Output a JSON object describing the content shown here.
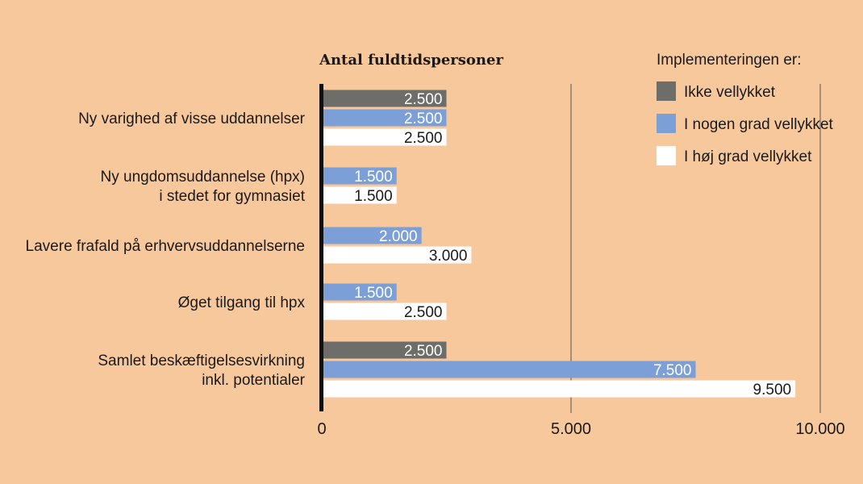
{
  "chart_data": {
    "type": "bar",
    "orientation": "horizontal",
    "title": "Antal fuldtidspersoner",
    "legend_title": "Implementeringen er:",
    "categories": [
      [
        "Ny varighed af visse uddannelser"
      ],
      [
        "Ny ungdomsuddannelse (hpx)",
        "i stedet for gymnasiet"
      ],
      [
        "Lavere frafald på erhvervsuddannelserne"
      ],
      [
        "Øget tilgang til hpx"
      ],
      [
        "Samlet beskæftigelsesvirkning",
        "inkl. potentialer"
      ]
    ],
    "series": [
      {
        "name": "Ikke vellykket",
        "color": "#6d6d69",
        "text_color": "#ffffff",
        "values": [
          2500,
          null,
          null,
          null,
          2500
        ],
        "labels": [
          "2.500",
          null,
          null,
          null,
          "2.500"
        ]
      },
      {
        "name": "I nogen grad vellykket",
        "color": "#7b9fd6",
        "text_color": "#ffffff",
        "values": [
          2500,
          1500,
          2000,
          1500,
          7500
        ],
        "labels": [
          "2.500",
          "1.500",
          "2.000",
          "1.500",
          "7.500"
        ]
      },
      {
        "name": "I høj grad vellykket",
        "color": "#ffffff",
        "text_color": "#1a1a1a",
        "values": [
          2500,
          1500,
          3000,
          2500,
          9500
        ],
        "labels": [
          "2.500",
          "1.500",
          "3.000",
          "2.500",
          "9.500"
        ]
      }
    ],
    "xlim": [
      0,
      10000
    ],
    "xticks": [
      0,
      5000,
      10000
    ],
    "xtick_labels": [
      "0",
      "5.000",
      "10.000"
    ],
    "grid": "vertical",
    "legend_position": "top-right"
  }
}
